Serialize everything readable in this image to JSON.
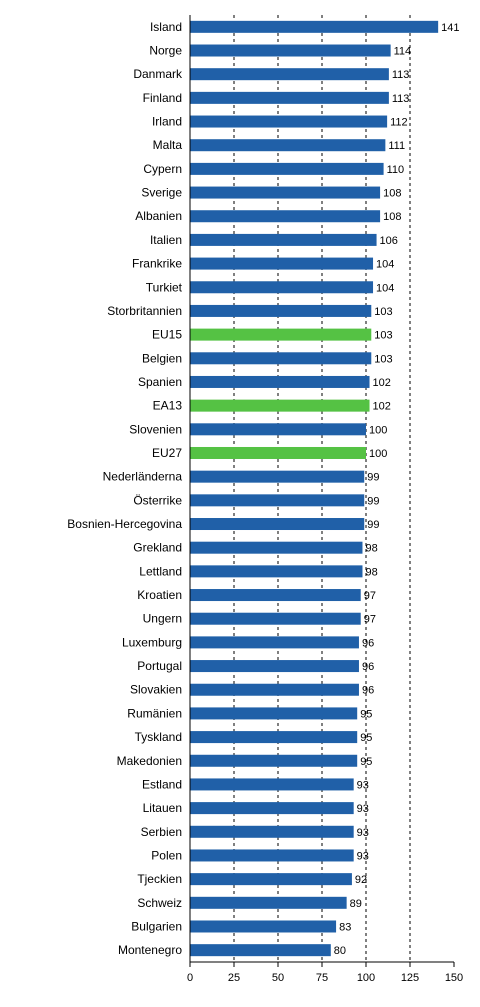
{
  "chart_data": {
    "type": "bar",
    "orientation": "horizontal",
    "categories": [
      "Island",
      "Norge",
      "Danmark",
      "Finland",
      "Irland",
      "Malta",
      "Cypern",
      "Sverige",
      "Albanien",
      "Italien",
      "Frankrike",
      "Turkiet",
      "Storbritannien",
      "EU15",
      "Belgien",
      "Spanien",
      "EA13",
      "Slovenien",
      "EU27",
      "Nederländerna",
      "Österrike",
      "Bosnien-Hercegovina",
      "Grekland",
      "Lettland",
      "Kroatien",
      "Ungern",
      "Luxemburg",
      "Portugal",
      "Slovakien",
      "Rumänien",
      "Tyskland",
      "Makedonien",
      "Estland",
      "Litauen",
      "Serbien",
      "Polen",
      "Tjeckien",
      "Schweiz",
      "Bulgarien",
      "Montenegro"
    ],
    "values": [
      141,
      114,
      113,
      113,
      112,
      111,
      110,
      108,
      108,
      106,
      104,
      104,
      103,
      103,
      103,
      102,
      102,
      100,
      100,
      99,
      99,
      99,
      98,
      98,
      97,
      97,
      96,
      96,
      96,
      95,
      95,
      95,
      93,
      93,
      93,
      93,
      92,
      89,
      83,
      80
    ],
    "highlighted": [
      "EU15",
      "EA13",
      "EU27"
    ],
    "xlim": [
      0,
      150
    ],
    "xticks": [
      0,
      25,
      50,
      75,
      100,
      125,
      150
    ],
    "gridlines": [
      25,
      50,
      75,
      100,
      125
    ],
    "colors": {
      "bar": "#2060a8",
      "highlight": "#55c244",
      "grid": "#000000",
      "axis": "#000000"
    },
    "title": "",
    "xlabel": "",
    "ylabel": ""
  }
}
